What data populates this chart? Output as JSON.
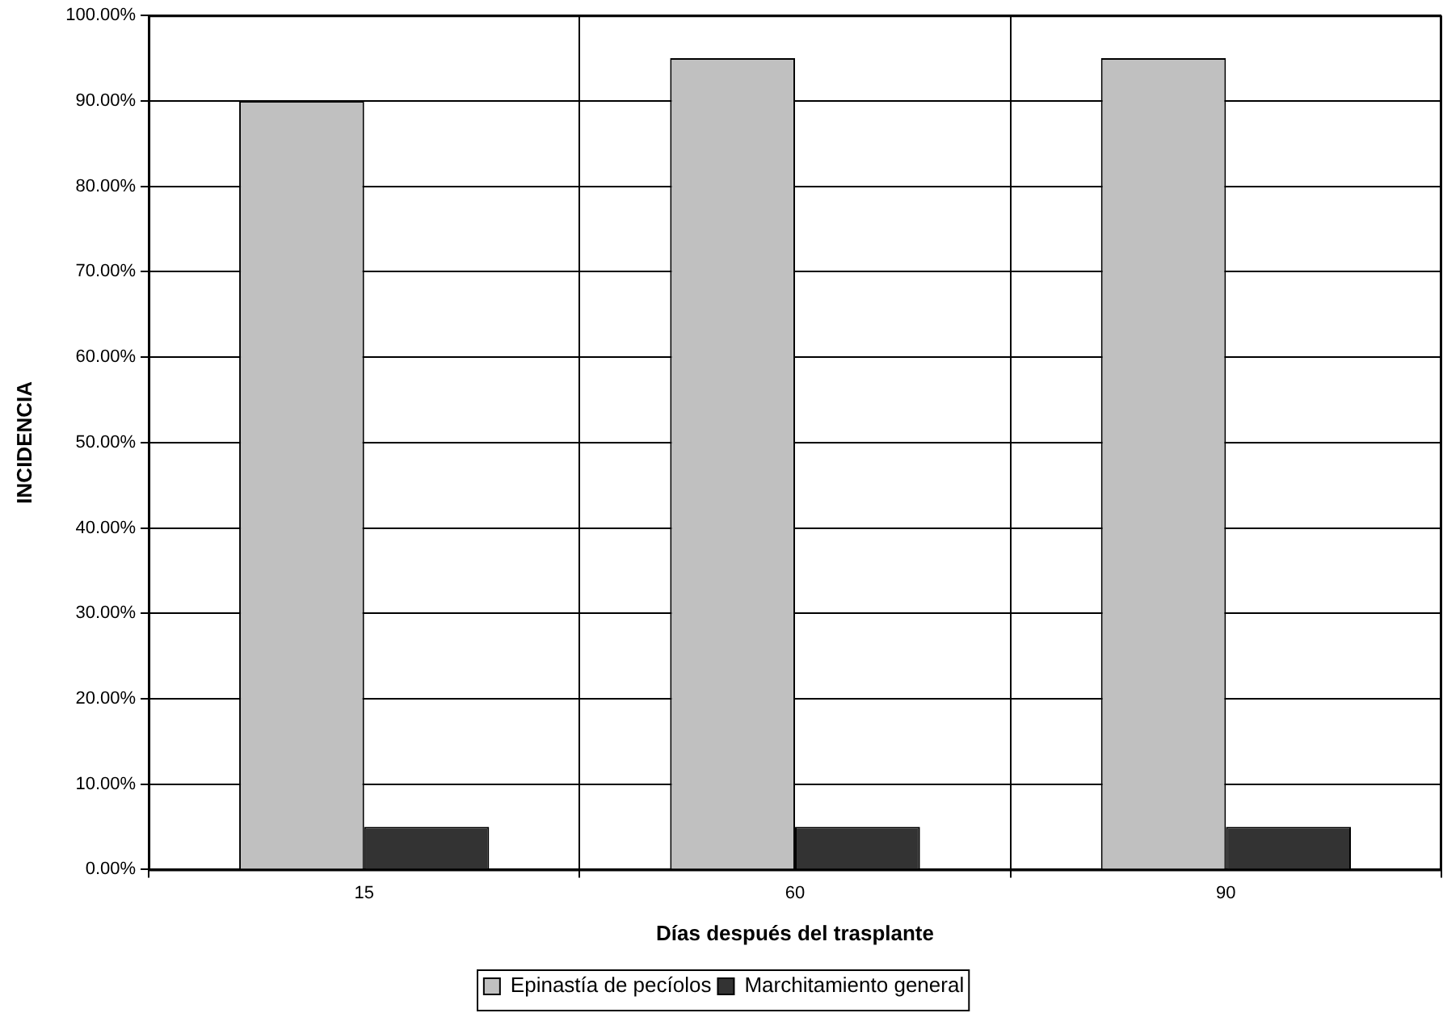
{
  "chart_data": {
    "type": "bar",
    "xlabel": "Días después del trasplante",
    "ylabel": "INCIDENCIA",
    "categories": [
      "15",
      "60",
      "90"
    ],
    "series": [
      {
        "name": "Epinastía de pecíolos",
        "color": "#c0c0c0",
        "values": [
          90,
          95,
          95
        ]
      },
      {
        "name": "Marchitamiento general",
        "color": "#333333",
        "values": [
          5,
          5,
          5
        ]
      }
    ],
    "ylim": [
      0,
      100
    ],
    "yticks": [
      {
        "value": 0,
        "label": "0.00%"
      },
      {
        "value": 10,
        "label": "10.00%"
      },
      {
        "value": 20,
        "label": "20.00%"
      },
      {
        "value": 30,
        "label": "30.00%"
      },
      {
        "value": 40,
        "label": "40.00%"
      },
      {
        "value": 50,
        "label": "50.00%"
      },
      {
        "value": 60,
        "label": "60.00%"
      },
      {
        "value": 70,
        "label": "70.00%"
      },
      {
        "value": 80,
        "label": "80.00%"
      },
      {
        "value": 90,
        "label": "90.00%"
      },
      {
        "value": 100,
        "label": "100.00%"
      }
    ],
    "grid": true,
    "legend": "bottom"
  }
}
